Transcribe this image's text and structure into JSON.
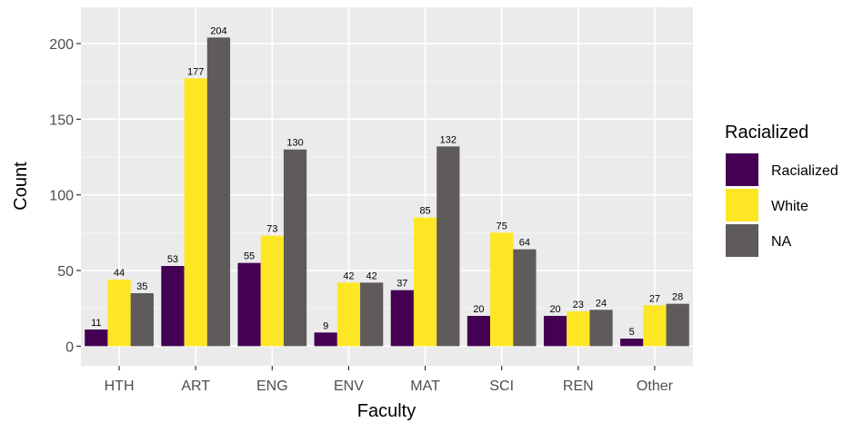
{
  "chart_data": {
    "type": "bar",
    "xlabel": "Faculty",
    "ylabel": "Count",
    "categories": [
      "HTH",
      "ART",
      "ENG",
      "ENV",
      "MAT",
      "SCI",
      "REN",
      "Other"
    ],
    "ylim": [
      -13,
      224
    ],
    "yticks": [
      0,
      50,
      100,
      150,
      200
    ],
    "grid": true,
    "legend": {
      "title": "Racialized",
      "placement": "right"
    },
    "series": [
      {
        "name": "Racialized",
        "color": "#440154",
        "values": [
          11,
          53,
          55,
          9,
          37,
          20,
          20,
          5
        ]
      },
      {
        "name": "White",
        "color": "#FDE725",
        "values": [
          44,
          177,
          73,
          42,
          85,
          75,
          23,
          27
        ]
      },
      {
        "name": "NA",
        "color": "#5F5B5B",
        "values": [
          35,
          204,
          130,
          42,
          132,
          64,
          24,
          28
        ]
      }
    ]
  },
  "colors": {
    "panel_background": "#EBEBEB",
    "grid_major": "#FFFFFF",
    "grid_minor": "#F4F4F4"
  }
}
